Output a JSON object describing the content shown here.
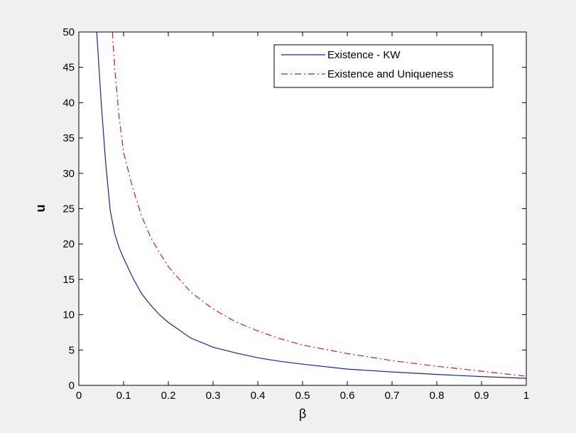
{
  "chart_data": {
    "type": "line",
    "title": "",
    "xlabel": "β",
    "ylabel": "u",
    "xlim": [
      0,
      1
    ],
    "ylim": [
      0,
      50
    ],
    "xticks": [
      0,
      0.1,
      0.2,
      0.3,
      0.4,
      0.5,
      0.6,
      0.7,
      0.8,
      0.9,
      1
    ],
    "xtick_labels": [
      "0",
      "0.1",
      "0.2",
      "0.3",
      "0.4",
      "0.5",
      "0.6",
      "0.7",
      "0.8",
      "0.9",
      "1"
    ],
    "yticks": [
      0,
      5,
      10,
      15,
      20,
      25,
      30,
      35,
      40,
      45,
      50
    ],
    "ytick_labels": [
      "0",
      "5",
      "10",
      "15",
      "20",
      "25",
      "30",
      "35",
      "40",
      "45",
      "50"
    ],
    "grid": false,
    "legend_position": "top-right",
    "series": [
      {
        "name": "Existence - KW",
        "color": "#1f1fb4",
        "style": "solid",
        "x": [
          0.04,
          0.05,
          0.06,
          0.07,
          0.08,
          0.09,
          0.1,
          0.12,
          0.14,
          0.16,
          0.18,
          0.2,
          0.25,
          0.3,
          0.35,
          0.4,
          0.45,
          0.5,
          0.6,
          0.7,
          0.8,
          0.9,
          1.0
        ],
        "y": [
          50,
          40,
          31.5,
          24.8,
          21.5,
          19.5,
          18.0,
          15.3,
          13.0,
          11.4,
          10.0,
          8.9,
          6.7,
          5.4,
          4.6,
          3.9,
          3.4,
          3.0,
          2.3,
          1.9,
          1.55,
          1.25,
          1.0
        ]
      },
      {
        "name": "Existence and Uniqueness",
        "color": "#c81e1e",
        "style": "dashdot",
        "x": [
          0.075,
          0.08,
          0.09,
          0.1,
          0.12,
          0.14,
          0.16,
          0.18,
          0.2,
          0.25,
          0.3,
          0.35,
          0.4,
          0.45,
          0.5,
          0.6,
          0.7,
          0.8,
          0.9,
          1.0
        ],
        "y": [
          50,
          45.0,
          38.0,
          33.0,
          28.0,
          24.0,
          21.0,
          18.8,
          16.8,
          13.2,
          10.8,
          9.0,
          7.7,
          6.6,
          5.7,
          4.5,
          3.5,
          2.7,
          2.0,
          1.3
        ]
      }
    ]
  }
}
